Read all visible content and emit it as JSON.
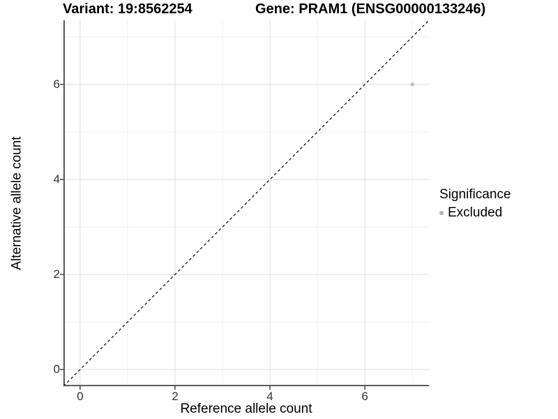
{
  "figure": {
    "title_left": "Variant: 19:8562254",
    "title_right": "Gene: PRAM1 (ENSG00000133246)"
  },
  "chart_data": {
    "type": "scatter",
    "title": "Variant: 19:8562254   Gene: PRAM1 (ENSG00000133246)",
    "xlabel": "Reference allele count",
    "ylabel": "Alternative allele count",
    "xlim": [
      -0.35,
      7.35
    ],
    "ylim": [
      -0.35,
      7.35
    ],
    "x_major_ticks": [
      0,
      2,
      4,
      6
    ],
    "x_minor_ticks": [
      1,
      3,
      5,
      7
    ],
    "y_major_ticks": [
      0,
      2,
      4,
      6
    ],
    "y_minor_ticks": [
      1,
      3,
      5,
      7
    ],
    "grid": "major and minor gridlines on white background",
    "reference_line": {
      "kind": "identity y=x",
      "style": "dashed",
      "color": "#000000"
    },
    "series": [
      {
        "name": "Excluded",
        "color": "#bdbdbd",
        "points": [
          [
            7,
            6
          ]
        ]
      }
    ],
    "legend": {
      "title": "Significance",
      "position": "right",
      "entries": [
        {
          "label": "Excluded",
          "color": "#b3b3b3"
        }
      ]
    },
    "colors": {
      "background": "#ffffff",
      "grid_major": "#e4e4e4",
      "grid_minor": "#f1f1f1",
      "axis_line": "#454545",
      "tick_mark": "#333333",
      "axis_text": "#333333"
    }
  }
}
